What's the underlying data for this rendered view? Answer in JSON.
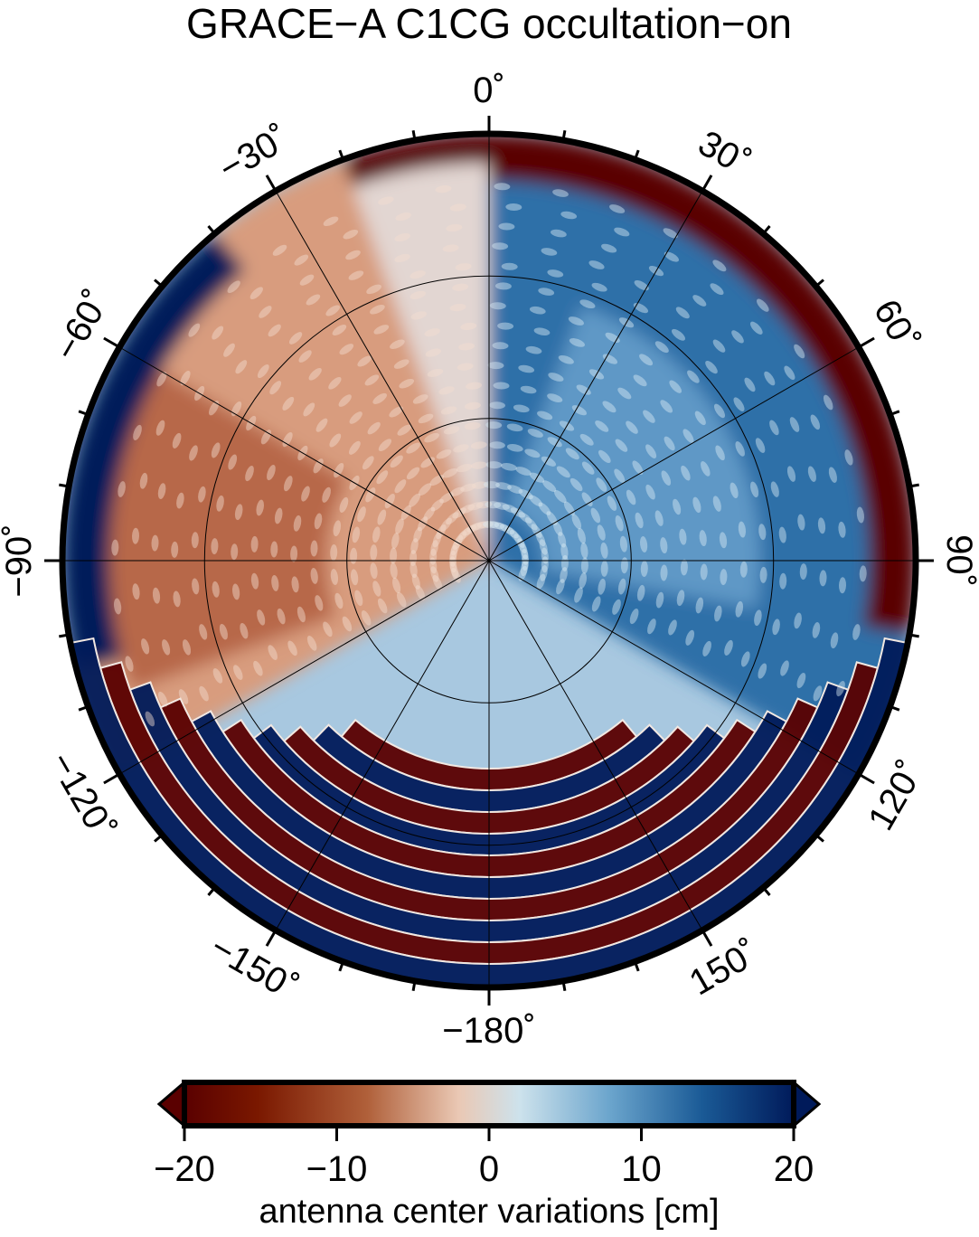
{
  "chart_data": {
    "type": "heatmap",
    "projection": "polar-azimuthal",
    "title": "GRACE−A C1CG occultation−on",
    "azimuth_labels": [
      {
        "az": 0,
        "label": "0˚"
      },
      {
        "az": 30,
        "label": "30˚"
      },
      {
        "az": 60,
        "label": "60˚"
      },
      {
        "az": 90,
        "label": "90˚"
      },
      {
        "az": 120,
        "label": "120˚"
      },
      {
        "az": 150,
        "label": "150˚"
      },
      {
        "az": 180,
        "label": "−180˚"
      },
      {
        "az": -150,
        "label": "−150˚"
      },
      {
        "az": -120,
        "label": "−120˚"
      },
      {
        "az": -90,
        "label": "−90˚"
      },
      {
        "az": -60,
        "label": "−60˚"
      },
      {
        "az": -30,
        "label": "−30˚"
      }
    ],
    "radial_gridlines": 3,
    "colorbar": {
      "label": "antenna center variations [cm]",
      "min": -20,
      "max": 20,
      "ticks": [
        -20,
        -10,
        0,
        10,
        20
      ],
      "tick_labels": [
        "−20",
        "−10",
        "0",
        "10",
        "20"
      ],
      "colors": [
        "#5a0000",
        "#8a2a08",
        "#c07048",
        "#e8c4ae",
        "#d4e0e8",
        "#8ab8d8",
        "#2a6ea6",
        "#0a2a6a",
        "#001a5a"
      ]
    },
    "field_description_regions": {
      "negative_wedge_az": [
        -120,
        -20
      ],
      "positive_wedge_az": [
        0,
        120
      ],
      "rim_negative_az": [
        0,
        90
      ],
      "rim_positive_az": [
        -90,
        -40
      ],
      "banded_sector_az": [
        110,
        250
      ]
    }
  }
}
